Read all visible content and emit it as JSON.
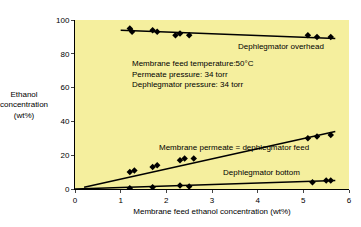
{
  "chart_data": {
    "type": "scatter",
    "x_label": "Membrane feed ethanol concentration (wt%)",
    "y_label": "Ethanol concentration (wt%)",
    "xlim": [
      0,
      6
    ],
    "xticks": [
      0,
      1,
      2,
      3,
      4,
      5,
      6
    ],
    "ylim": [
      0,
      100
    ],
    "yticks": [
      0,
      20,
      40,
      60,
      80,
      100
    ],
    "grid": false,
    "marker": "diamond",
    "color": "#000000",
    "annotations": [
      "Membrane feed temperature:50°C",
      "Permeate pressure: 34 torr",
      "Dephlegmator pressure: 34 torr"
    ],
    "series": [
      {
        "name": "Dephlegmator overhead",
        "color": "#000000",
        "x": [
          1.2,
          1.25,
          1.7,
          1.8,
          2.2,
          2.3,
          2.5,
          5.1,
          5.3,
          5.6
        ],
        "values": [
          95,
          93,
          94,
          93,
          91,
          92,
          91,
          91,
          90,
          90
        ],
        "trend": {
          "x": [
            1.0,
            5.7
          ],
          "values": [
            94,
            89
          ]
        }
      },
      {
        "name": "Membrane permeate = dephlegmator feed",
        "color": "#000000",
        "x": [
          1.2,
          1.3,
          1.7,
          1.8,
          2.3,
          2.4,
          2.6,
          5.1,
          5.3,
          5.6
        ],
        "values": [
          10,
          11,
          13,
          14,
          17,
          18,
          18,
          30,
          31,
          32
        ],
        "trend": {
          "x": [
            0.2,
            5.7
          ],
          "values": [
            1,
            34
          ]
        }
      },
      {
        "name": "Dephlegmator bottom",
        "color": "#000000",
        "x": [
          1.2,
          1.7,
          2.3,
          2.5,
          5.2,
          5.5,
          5.6
        ],
        "values": [
          0.5,
          1,
          2,
          1.5,
          4,
          5,
          5
        ],
        "trend": {
          "x": [
            0,
            5.7
          ],
          "values": [
            0,
            5
          ]
        }
      }
    ]
  }
}
